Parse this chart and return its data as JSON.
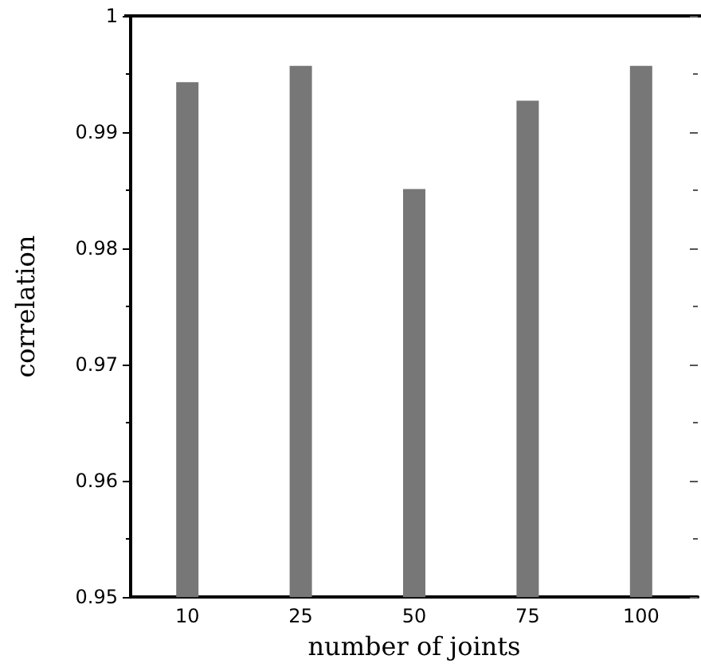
{
  "chart_data": {
    "type": "bar",
    "xlabel": "number of joints",
    "ylabel": "correlation",
    "categories": [
      "10",
      "25",
      "50",
      "75",
      "100"
    ],
    "values": [
      0.9943,
      0.9957,
      0.9851,
      0.9927,
      0.9957
    ],
    "color": "#777777",
    "ylim": [
      0.95,
      1
    ],
    "yticks": [
      0.95,
      0.96,
      0.97,
      0.98,
      0.99,
      1
    ],
    "grid": false
  }
}
